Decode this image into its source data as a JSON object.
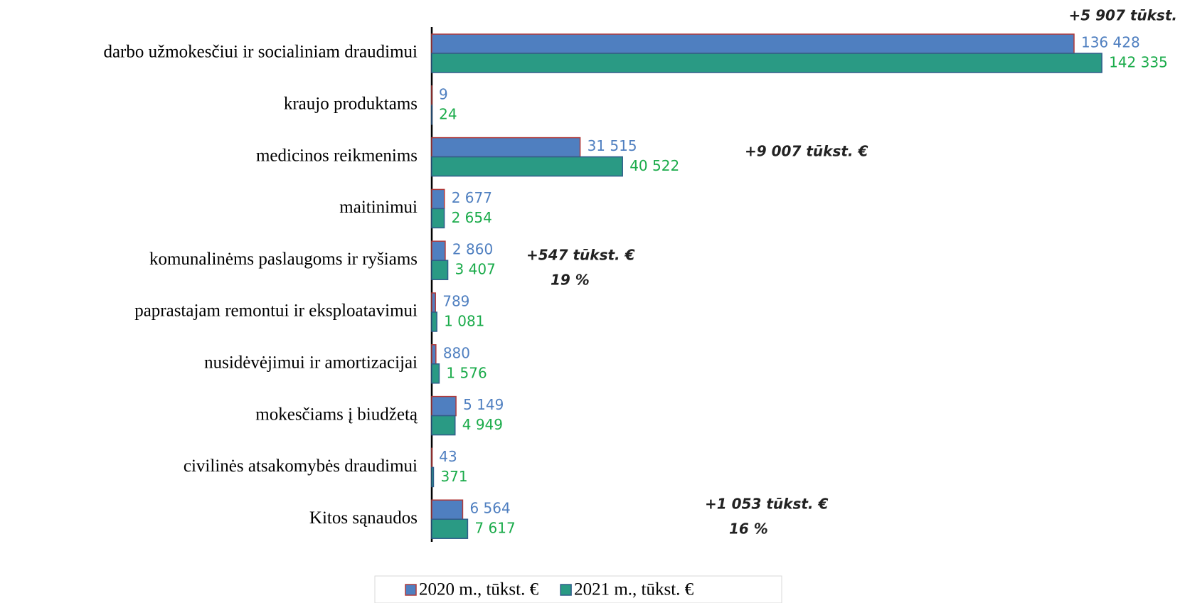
{
  "chart_data": {
    "type": "bar",
    "orientation": "horizontal",
    "categories": [
      "darbo užmokesčiui ir socialiniam draudimui",
      "kraujo produktams",
      "medicinos reikmenims",
      "maitinimui",
      "komunalinėms paslaugoms ir ryšiams",
      "paprastajam remontui ir eksploatavimui",
      "nusidėvėjimui ir amortizacijai",
      "mokesčiams į biudžetą",
      "civilinės atsakomybės draudimui",
      "Kitos sąnaudos"
    ],
    "series": [
      {
        "name": "2020 m., tūkst. €",
        "color": "#4f7fc0",
        "edge": "#b03a3a",
        "label_color": "#4f7fc0",
        "values": [
          136428,
          9,
          31515,
          2677,
          2860,
          789,
          880,
          5149,
          43,
          6564
        ],
        "value_labels": [
          "136 428",
          "9",
          "31 515",
          "2 677",
          "2 860",
          "789",
          "880",
          "5 149",
          "43",
          "6 564"
        ]
      },
      {
        "name": "2021 m., tūkst. €",
        "color": "#2a9a84",
        "edge": "#2f5d8a",
        "label_color": "#1aab4a",
        "values": [
          142335,
          24,
          40522,
          2654,
          3407,
          1081,
          1576,
          4949,
          371,
          7617
        ],
        "value_labels": [
          "142 335",
          "24",
          "40 522",
          "2 654",
          "3 407",
          "1 081",
          "1 576",
          "4 949",
          "371",
          "7 617"
        ]
      }
    ],
    "xlim": [
      0,
      160000
    ],
    "annotations": [
      "+5 907 tūkst.",
      "+9 007 tūkst.  €",
      "+547 tūkst.  €",
      "19 %",
      "+1 053 tūkst.  €",
      "16 %"
    ],
    "legend": "bottom"
  }
}
